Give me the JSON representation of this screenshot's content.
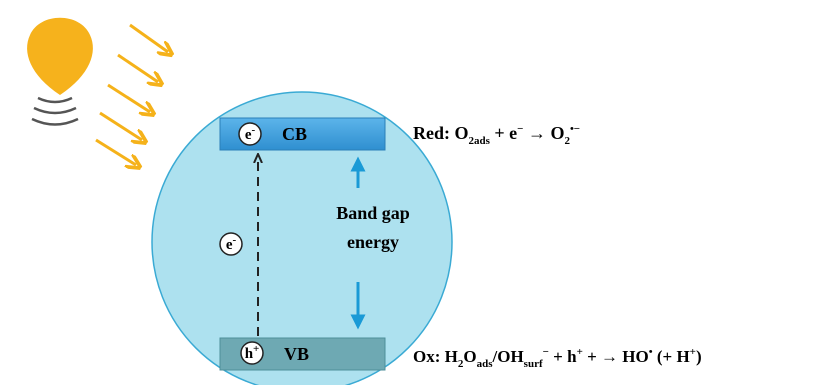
{
  "band_diagram": {
    "conduction_band": {
      "label": "CB",
      "carrier": [
        "e",
        "-"
      ]
    },
    "valence_band": {
      "label": "VB",
      "carrier": [
        "h",
        "+"
      ]
    },
    "transition_carrier": [
      "e",
      "-"
    ],
    "band_gap_label": [
      "Band gap",
      "energy"
    ],
    "reduction": [
      "Red: O",
      "2ads",
      " + e",
      "−",
      " → O",
      "2",
      "•−"
    ],
    "oxidation": [
      "Ox: H",
      "2",
      "O",
      "ads",
      "/OH",
      "surf",
      "−",
      " + h",
      "+",
      " + → HO",
      "•",
      " (+ H",
      "+",
      ")"
    ]
  }
}
